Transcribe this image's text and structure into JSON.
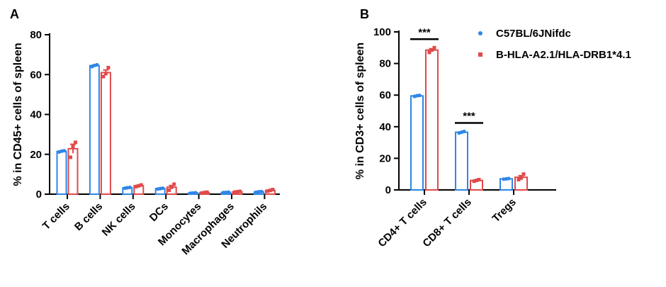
{
  "colors": {
    "series1": "#2f86e8",
    "series2": "#e04a4a",
    "axis": "#000000"
  },
  "legend": {
    "position": "top-right",
    "items": [
      {
        "label": "C57BL/6JNifdc",
        "color": "#2f86e8",
        "marker": "circle"
      },
      {
        "label": "B-HLA-A2.1/HLA-DRB1*4.1",
        "color": "#e04a4a",
        "marker": "square"
      }
    ]
  },
  "chart_data": [
    {
      "panel": "A",
      "type": "bar",
      "title": "",
      "xlabel": "",
      "ylabel": "% in CD45+ cells of spleen",
      "ylim": [
        0,
        80
      ],
      "yticks": [
        0,
        20,
        40,
        60,
        80
      ],
      "grid": false,
      "categories": [
        "T cells",
        "B cells",
        "NK cells",
        "DCs",
        "Monocytes",
        "Macrophages",
        "Neutrophils"
      ],
      "series": [
        {
          "name": "C57BL/6JNifdc",
          "values": [
            21.5,
            64.5,
            3.2,
            2.8,
            0.6,
            0.9,
            1.2
          ],
          "points": [
            [
              21.2,
              21.6,
              21.8
            ],
            [
              64.0,
              64.6,
              64.9
            ],
            [
              3.0,
              3.2,
              3.4
            ],
            [
              2.6,
              2.8,
              3.0
            ],
            [
              0.5,
              0.6,
              0.7
            ],
            [
              0.8,
              0.9,
              1.0
            ],
            [
              1.0,
              1.2,
              1.3
            ]
          ]
        },
        {
          "name": "B-HLA-A2.1/HLA-DRB1*4.1",
          "values": [
            22.8,
            61.0,
            4.2,
            3.5,
            0.8,
            1.2,
            1.9
          ],
          "points": [
            [
              18.5,
              24.0,
              26.0
            ],
            [
              59.0,
              60.5,
              63.5
            ],
            [
              3.8,
              4.2,
              4.6
            ],
            [
              2.0,
              3.5,
              5.0
            ],
            [
              0.6,
              0.8,
              1.0
            ],
            [
              1.0,
              1.2,
              1.4
            ],
            [
              1.5,
              1.9,
              2.3
            ]
          ]
        }
      ]
    },
    {
      "panel": "B",
      "type": "bar",
      "title": "",
      "xlabel": "",
      "ylabel": "% in CD3+ cells of spleen",
      "ylim": [
        0,
        100
      ],
      "yticks": [
        0,
        20,
        40,
        60,
        80,
        100
      ],
      "grid": false,
      "categories": [
        "CD4+ T cells",
        "CD8+ T cells",
        "Tregs"
      ],
      "series": [
        {
          "name": "C57BL/6JNifdc",
          "values": [
            59.5,
            36.5,
            7.0
          ],
          "points": [
            [
              59.2,
              59.6,
              59.8
            ],
            [
              36.0,
              36.5,
              37.0
            ],
            [
              6.8,
              7.0,
              7.2
            ]
          ]
        },
        {
          "name": "B-HLA-A2.1/HLA-DRB1*4.1",
          "values": [
            88.5,
            6.0,
            8.0
          ],
          "points": [
            [
              87.0,
              88.5,
              90.0
            ],
            [
              5.5,
              6.0,
              6.5
            ],
            [
              6.5,
              7.5,
              10.0
            ]
          ]
        }
      ],
      "annotations": [
        {
          "text": "***",
          "category_index": 0
        },
        {
          "text": "***",
          "category_index": 1
        }
      ]
    }
  ]
}
